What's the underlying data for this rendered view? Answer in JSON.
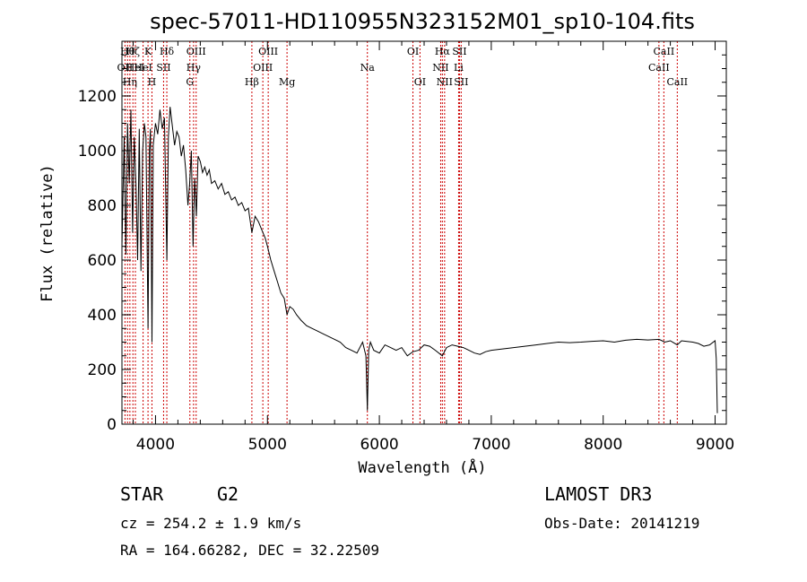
{
  "chart_data": {
    "type": "line",
    "title": "spec-57011-HD110955N323152M01_sp10-104.fits",
    "xlabel": "Wavelength (Å)",
    "ylabel": "Flux (relative)",
    "xlim": [
      3700,
      9100
    ],
    "ylim": [
      0,
      1400
    ],
    "x_ticks": [
      4000,
      5000,
      6000,
      7000,
      8000,
      9000
    ],
    "y_ticks": [
      0,
      200,
      400,
      600,
      800,
      1000,
      1200
    ],
    "line_color": "#000000",
    "marker_color": "#cc0000",
    "grid": false,
    "series": [
      {
        "points": [
          [
            3700,
            650
          ],
          [
            3720,
            1050
          ],
          [
            3735,
            620
          ],
          [
            3750,
            1100
          ],
          [
            3765,
            880
          ],
          [
            3780,
            1150
          ],
          [
            3795,
            700
          ],
          [
            3810,
            1050
          ],
          [
            3825,
            880
          ],
          [
            3840,
            600
          ],
          [
            3855,
            1080
          ],
          [
            3870,
            560
          ],
          [
            3885,
            1000
          ],
          [
            3900,
            1100
          ],
          [
            3915,
            1050
          ],
          [
            3933,
            350
          ],
          [
            3945,
            1000
          ],
          [
            3955,
            1080
          ],
          [
            3968,
            300
          ],
          [
            3980,
            1020
          ],
          [
            4000,
            1100
          ],
          [
            4020,
            1060
          ],
          [
            4040,
            1150
          ],
          [
            4060,
            1080
          ],
          [
            4080,
            1120
          ],
          [
            4101,
            600
          ],
          [
            4115,
            1050
          ],
          [
            4130,
            1160
          ],
          [
            4150,
            1090
          ],
          [
            4170,
            1020
          ],
          [
            4190,
            1070
          ],
          [
            4210,
            1050
          ],
          [
            4230,
            980
          ],
          [
            4250,
            1020
          ],
          [
            4270,
            930
          ],
          [
            4290,
            800
          ],
          [
            4305,
            880
          ],
          [
            4320,
            1000
          ],
          [
            4335,
            650
          ],
          [
            4350,
            900
          ],
          [
            4365,
            760
          ],
          [
            4380,
            980
          ],
          [
            4400,
            960
          ],
          [
            4420,
            920
          ],
          [
            4440,
            940
          ],
          [
            4460,
            910
          ],
          [
            4480,
            930
          ],
          [
            4500,
            880
          ],
          [
            4530,
            890
          ],
          [
            4560,
            860
          ],
          [
            4590,
            880
          ],
          [
            4620,
            840
          ],
          [
            4650,
            850
          ],
          [
            4680,
            820
          ],
          [
            4710,
            830
          ],
          [
            4740,
            800
          ],
          [
            4770,
            810
          ],
          [
            4800,
            780
          ],
          [
            4830,
            790
          ],
          [
            4861,
            700
          ],
          [
            4890,
            760
          ],
          [
            4920,
            740
          ],
          [
            4950,
            710
          ],
          [
            4980,
            680
          ],
          [
            5000,
            650
          ],
          [
            5030,
            600
          ],
          [
            5060,
            560
          ],
          [
            5090,
            520
          ],
          [
            5120,
            480
          ],
          [
            5150,
            460
          ],
          [
            5175,
            400
          ],
          [
            5200,
            430
          ],
          [
            5230,
            420
          ],
          [
            5260,
            400
          ],
          [
            5300,
            380
          ],
          [
            5350,
            360
          ],
          [
            5400,
            350
          ],
          [
            5450,
            340
          ],
          [
            5500,
            330
          ],
          [
            5550,
            320
          ],
          [
            5600,
            310
          ],
          [
            5650,
            300
          ],
          [
            5700,
            280
          ],
          [
            5750,
            270
          ],
          [
            5800,
            260
          ],
          [
            5850,
            300
          ],
          [
            5880,
            250
          ],
          [
            5893,
            50
          ],
          [
            5905,
            270
          ],
          [
            5920,
            300
          ],
          [
            5950,
            270
          ],
          [
            6000,
            260
          ],
          [
            6050,
            290
          ],
          [
            6100,
            280
          ],
          [
            6150,
            270
          ],
          [
            6200,
            280
          ],
          [
            6250,
            250
          ],
          [
            6300,
            265
          ],
          [
            6350,
            270
          ],
          [
            6400,
            290
          ],
          [
            6450,
            285
          ],
          [
            6500,
            270
          ],
          [
            6563,
            250
          ],
          [
            6600,
            280
          ],
          [
            6650,
            290
          ],
          [
            6700,
            285
          ],
          [
            6750,
            280
          ],
          [
            6800,
            270
          ],
          [
            6850,
            260
          ],
          [
            6900,
            255
          ],
          [
            6950,
            265
          ],
          [
            7000,
            270
          ],
          [
            7100,
            275
          ],
          [
            7200,
            280
          ],
          [
            7300,
            285
          ],
          [
            7400,
            290
          ],
          [
            7500,
            295
          ],
          [
            7600,
            300
          ],
          [
            7700,
            298
          ],
          [
            7800,
            300
          ],
          [
            7900,
            303
          ],
          [
            8000,
            305
          ],
          [
            8100,
            300
          ],
          [
            8200,
            307
          ],
          [
            8300,
            310
          ],
          [
            8400,
            308
          ],
          [
            8500,
            310
          ],
          [
            8550,
            300
          ],
          [
            8600,
            305
          ],
          [
            8662,
            290
          ],
          [
            8700,
            305
          ],
          [
            8800,
            300
          ],
          [
            8850,
            295
          ],
          [
            8900,
            285
          ],
          [
            8950,
            290
          ],
          [
            9000,
            305
          ],
          [
            9010,
            240
          ],
          [
            9020,
            40
          ]
        ]
      }
    ],
    "lines": [
      {
        "x": 3727,
        "label": "OII",
        "row": 2
      },
      {
        "x": 3750,
        "label": "Hθ",
        "row": 1
      },
      {
        "x": 3771,
        "label": "Hη",
        "row": 3
      },
      {
        "x": 3798,
        "label": "Hζ",
        "row": 1
      },
      {
        "x": 3820,
        "label": "HeI",
        "row": 2
      },
      {
        "x": 3889,
        "label": "HeI",
        "row": 2
      },
      {
        "x": 3933,
        "label": "K",
        "row": 1
      },
      {
        "x": 3968,
        "label": "H",
        "row": 3
      },
      {
        "x": 4072,
        "label": "SII",
        "row": 2
      },
      {
        "x": 4101,
        "label": "Hδ",
        "row": 1
      },
      {
        "x": 4307,
        "label": "G",
        "row": 3
      },
      {
        "x": 4340,
        "label": "Hγ",
        "row": 2
      },
      {
        "x": 4363,
        "label": "OIII",
        "row": 1
      },
      {
        "x": 4861,
        "label": "Hβ",
        "row": 3
      },
      {
        "x": 4959,
        "label": "OIII",
        "row": 2
      },
      {
        "x": 5007,
        "label": "OIII",
        "row": 1
      },
      {
        "x": 5175,
        "label": "Mg",
        "row": 3
      },
      {
        "x": 5893,
        "label": "Na",
        "row": 2
      },
      {
        "x": 6300,
        "label": "OI",
        "row": 1
      },
      {
        "x": 6363,
        "label": "OI",
        "row": 3
      },
      {
        "x": 6548,
        "label": "NII",
        "row": 2
      },
      {
        "x": 6563,
        "label": "Hα",
        "row": 1
      },
      {
        "x": 6583,
        "label": "NII",
        "row": 3
      },
      {
        "x": 6708,
        "label": "Li",
        "row": 2
      },
      {
        "x": 6716,
        "label": "SII",
        "row": 1
      },
      {
        "x": 6731,
        "label": "SII",
        "row": 3
      },
      {
        "x": 8498,
        "label": "CaII",
        "row": 2
      },
      {
        "x": 8542,
        "label": "CaII",
        "row": 1
      },
      {
        "x": 8662,
        "label": "CaII",
        "row": 3
      }
    ]
  },
  "info": {
    "object_class": "STAR",
    "subclass": "G2",
    "survey": "LAMOST DR3",
    "cz": "cz = 254.2 ± 1.9 km/s",
    "obs_date": "Obs-Date: 20141219",
    "coords": "RA = 164.66282, DEC =  32.22509"
  }
}
